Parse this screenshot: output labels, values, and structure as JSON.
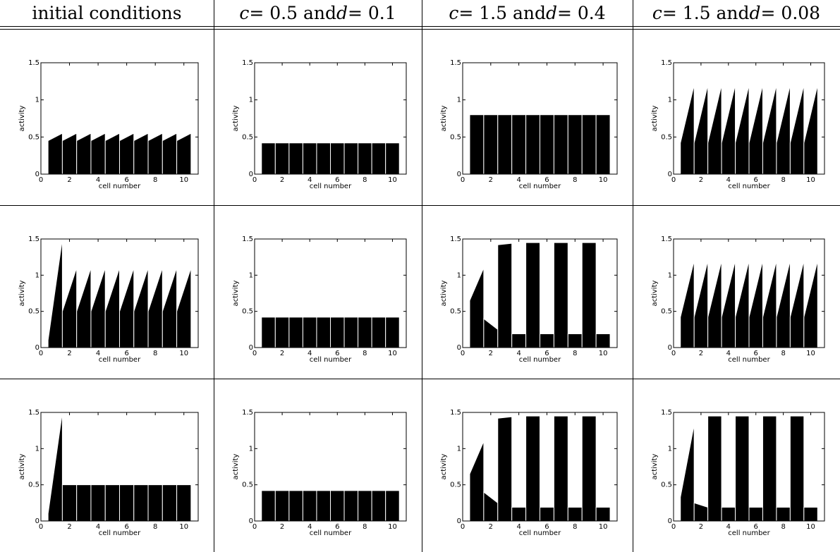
{
  "headers": [
    {
      "parts": [
        {
          "t": "initial conditions",
          "i": false
        }
      ]
    },
    {
      "parts": [
        {
          "t": "c",
          "i": true
        },
        {
          "t": " = 0.5 and ",
          "i": false
        },
        {
          "t": "d",
          "i": true
        },
        {
          "t": " = 0.1",
          "i": false
        }
      ]
    },
    {
      "parts": [
        {
          "t": "c",
          "i": true
        },
        {
          "t": " = 1.5 and ",
          "i": false
        },
        {
          "t": "d",
          "i": true
        },
        {
          "t": " = 0.4",
          "i": false
        }
      ]
    },
    {
      "parts": [
        {
          "t": "c",
          "i": true
        },
        {
          "t": " = 1.5 and ",
          "i": false
        },
        {
          "t": "d",
          "i": true
        },
        {
          "t": " = 0.08",
          "i": false
        }
      ]
    }
  ],
  "chart_data": [
    {
      "type": "bar",
      "row": 1,
      "col": 1,
      "xlabel": "cell number",
      "ylabel": "activity",
      "xlim": [
        0,
        11
      ],
      "ylim": [
        0,
        1.5
      ],
      "xticks": [
        "0",
        "2",
        "4",
        "6",
        "8",
        "10"
      ],
      "yticks": [
        "0",
        "0.5",
        "1",
        "1.5"
      ],
      "bars": [
        [
          0.45,
          0.55
        ],
        [
          0.45,
          0.55
        ],
        [
          0.45,
          0.55
        ],
        [
          0.45,
          0.55
        ],
        [
          0.45,
          0.55
        ],
        [
          0.45,
          0.55
        ],
        [
          0.45,
          0.55
        ],
        [
          0.45,
          0.55
        ],
        [
          0.45,
          0.55
        ],
        [
          0.45,
          0.55
        ]
      ]
    },
    {
      "type": "bar",
      "row": 1,
      "col": 2,
      "xlabel": "cell number",
      "ylabel": "activity",
      "xlim": [
        0,
        11
      ],
      "ylim": [
        0,
        1.5
      ],
      "xticks": [
        "0",
        "2",
        "4",
        "6",
        "8",
        "10"
      ],
      "yticks": [
        "0",
        "0.5",
        "1",
        "1.5"
      ],
      "bars": [
        [
          0.42,
          0.42
        ],
        [
          0.42,
          0.42
        ],
        [
          0.42,
          0.42
        ],
        [
          0.42,
          0.42
        ],
        [
          0.42,
          0.42
        ],
        [
          0.42,
          0.42
        ],
        [
          0.42,
          0.42
        ],
        [
          0.42,
          0.42
        ],
        [
          0.42,
          0.42
        ],
        [
          0.42,
          0.42
        ]
      ]
    },
    {
      "type": "bar",
      "row": 1,
      "col": 3,
      "xlabel": "cell number",
      "ylabel": "activity",
      "xlim": [
        0,
        11
      ],
      "ylim": [
        0,
        1.5
      ],
      "xticks": [
        "0",
        "2",
        "4",
        "6",
        "8",
        "10"
      ],
      "yticks": [
        "0",
        "0.5",
        "1",
        "1.5"
      ],
      "bars": [
        [
          0.8,
          0.8
        ],
        [
          0.8,
          0.8
        ],
        [
          0.8,
          0.8
        ],
        [
          0.8,
          0.8
        ],
        [
          0.8,
          0.8
        ],
        [
          0.8,
          0.8
        ],
        [
          0.8,
          0.8
        ],
        [
          0.8,
          0.8
        ],
        [
          0.8,
          0.8
        ],
        [
          0.8,
          0.8
        ]
      ]
    },
    {
      "type": "bar",
      "row": 1,
      "col": 4,
      "xlabel": "cell number",
      "ylabel": "activity",
      "xlim": [
        0,
        11
      ],
      "ylim": [
        0,
        1.5
      ],
      "xticks": [
        "0",
        "2",
        "4",
        "6",
        "8",
        "10"
      ],
      "yticks": [
        "0",
        "0.5",
        "1",
        "1.5"
      ],
      "bars": [
        [
          0.42,
          1.2
        ],
        [
          0.42,
          1.2
        ],
        [
          0.42,
          1.2
        ],
        [
          0.42,
          1.2
        ],
        [
          0.42,
          1.2
        ],
        [
          0.42,
          1.2
        ],
        [
          0.42,
          1.2
        ],
        [
          0.42,
          1.2
        ],
        [
          0.42,
          1.2
        ],
        [
          0.42,
          1.2
        ]
      ]
    },
    {
      "type": "bar",
      "row": 2,
      "col": 1,
      "xlabel": "cell number",
      "ylabel": "activity",
      "xlim": [
        0,
        11
      ],
      "ylim": [
        0,
        1.5
      ],
      "xticks": [
        "0",
        "2",
        "4",
        "6",
        "8",
        "10"
      ],
      "yticks": [
        "0",
        "0.5",
        "1",
        "1.5"
      ],
      "bars": [
        [
          0.1,
          1.5
        ],
        [
          0.5,
          1.1
        ],
        [
          0.5,
          1.1
        ],
        [
          0.5,
          1.1
        ],
        [
          0.5,
          1.1
        ],
        [
          0.5,
          1.1
        ],
        [
          0.5,
          1.1
        ],
        [
          0.5,
          1.1
        ],
        [
          0.5,
          1.1
        ],
        [
          0.5,
          1.1
        ]
      ]
    },
    {
      "type": "bar",
      "row": 2,
      "col": 2,
      "xlabel": "cell number",
      "ylabel": "activity",
      "xlim": [
        0,
        11
      ],
      "ylim": [
        0,
        1.5
      ],
      "xticks": [
        "0",
        "2",
        "4",
        "6",
        "8",
        "10"
      ],
      "yticks": [
        "0",
        "0.5",
        "1",
        "1.5"
      ],
      "bars": [
        [
          0.42,
          0.42
        ],
        [
          0.42,
          0.42
        ],
        [
          0.42,
          0.42
        ],
        [
          0.42,
          0.42
        ],
        [
          0.42,
          0.42
        ],
        [
          0.42,
          0.42
        ],
        [
          0.42,
          0.42
        ],
        [
          0.42,
          0.42
        ],
        [
          0.42,
          0.42
        ],
        [
          0.42,
          0.42
        ]
      ]
    },
    {
      "type": "bar",
      "row": 2,
      "col": 3,
      "xlabel": "cell number",
      "ylabel": "activity",
      "xlim": [
        0,
        11
      ],
      "ylim": [
        0,
        1.5
      ],
      "xticks": [
        "0",
        "2",
        "4",
        "6",
        "8",
        "10"
      ],
      "yticks": [
        "0",
        "0.5",
        "1",
        "1.5"
      ],
      "bars": [
        [
          0.65,
          1.1
        ],
        [
          0.4,
          0.25
        ],
        [
          1.42,
          1.44
        ],
        [
          0.19,
          0.19
        ],
        [
          1.45,
          1.45
        ],
        [
          0.19,
          0.19
        ],
        [
          1.45,
          1.45
        ],
        [
          0.19,
          0.19
        ],
        [
          1.45,
          1.45
        ],
        [
          0.19,
          0.19
        ]
      ]
    },
    {
      "type": "bar",
      "row": 2,
      "col": 4,
      "xlabel": "cell number",
      "ylabel": "activity",
      "xlim": [
        0,
        11
      ],
      "ylim": [
        0,
        1.5
      ],
      "xticks": [
        "0",
        "2",
        "4",
        "6",
        "8",
        "10"
      ],
      "yticks": [
        "0",
        "0.5",
        "1",
        "1.5"
      ],
      "bars": [
        [
          0.42,
          1.2
        ],
        [
          0.42,
          1.2
        ],
        [
          0.42,
          1.2
        ],
        [
          0.42,
          1.2
        ],
        [
          0.42,
          1.2
        ],
        [
          0.42,
          1.2
        ],
        [
          0.42,
          1.2
        ],
        [
          0.42,
          1.2
        ],
        [
          0.42,
          1.2
        ],
        [
          0.42,
          1.2
        ]
      ]
    },
    {
      "type": "bar",
      "row": 3,
      "col": 1,
      "xlabel": "cell number",
      "ylabel": "activity",
      "xlim": [
        0,
        11
      ],
      "ylim": [
        0,
        1.5
      ],
      "xticks": [
        "0",
        "2",
        "4",
        "6",
        "8",
        "10"
      ],
      "yticks": [
        "0",
        "0.5",
        "1",
        "1.5"
      ],
      "bars": [
        [
          0.1,
          1.5
        ],
        [
          0.5,
          0.5
        ],
        [
          0.5,
          0.5
        ],
        [
          0.5,
          0.5
        ],
        [
          0.5,
          0.5
        ],
        [
          0.5,
          0.5
        ],
        [
          0.5,
          0.5
        ],
        [
          0.5,
          0.5
        ],
        [
          0.5,
          0.5
        ],
        [
          0.5,
          0.5
        ]
      ]
    },
    {
      "type": "bar",
      "row": 3,
      "col": 2,
      "xlabel": "cell number",
      "ylabel": "activity",
      "xlim": [
        0,
        11
      ],
      "ylim": [
        0,
        1.5
      ],
      "xticks": [
        "0",
        "2",
        "4",
        "6",
        "8",
        "10"
      ],
      "yticks": [
        "0",
        "0.5",
        "1",
        "1.5"
      ],
      "bars": [
        [
          0.42,
          0.42
        ],
        [
          0.42,
          0.42
        ],
        [
          0.42,
          0.42
        ],
        [
          0.42,
          0.42
        ],
        [
          0.42,
          0.42
        ],
        [
          0.42,
          0.42
        ],
        [
          0.42,
          0.42
        ],
        [
          0.42,
          0.42
        ],
        [
          0.42,
          0.42
        ],
        [
          0.42,
          0.42
        ]
      ]
    },
    {
      "type": "bar",
      "row": 3,
      "col": 3,
      "xlabel": "cell number",
      "ylabel": "activity",
      "xlim": [
        0,
        11
      ],
      "ylim": [
        0,
        1.5
      ],
      "xticks": [
        "0",
        "2",
        "4",
        "6",
        "8",
        "10"
      ],
      "yticks": [
        "0",
        "0.5",
        "1",
        "1.5"
      ],
      "bars": [
        [
          0.65,
          1.1
        ],
        [
          0.4,
          0.25
        ],
        [
          1.42,
          1.44
        ],
        [
          0.19,
          0.19
        ],
        [
          1.45,
          1.45
        ],
        [
          0.19,
          0.19
        ],
        [
          1.45,
          1.45
        ],
        [
          0.19,
          0.19
        ],
        [
          1.45,
          1.45
        ],
        [
          0.19,
          0.19
        ]
      ]
    },
    {
      "type": "bar",
      "row": 3,
      "col": 4,
      "xlabel": "cell number",
      "ylabel": "activity",
      "xlim": [
        0,
        11
      ],
      "ylim": [
        0,
        1.5
      ],
      "xticks": [
        "0",
        "2",
        "4",
        "6",
        "8",
        "10"
      ],
      "yticks": [
        "0",
        "0.5",
        "1",
        "1.5"
      ],
      "bars": [
        [
          0.33,
          1.33
        ],
        [
          0.25,
          0.19
        ],
        [
          1.45,
          1.45
        ],
        [
          0.19,
          0.19
        ],
        [
          1.45,
          1.45
        ],
        [
          0.19,
          0.19
        ],
        [
          1.45,
          1.45
        ],
        [
          0.19,
          0.19
        ],
        [
          1.45,
          1.45
        ],
        [
          0.19,
          0.19
        ]
      ]
    }
  ]
}
